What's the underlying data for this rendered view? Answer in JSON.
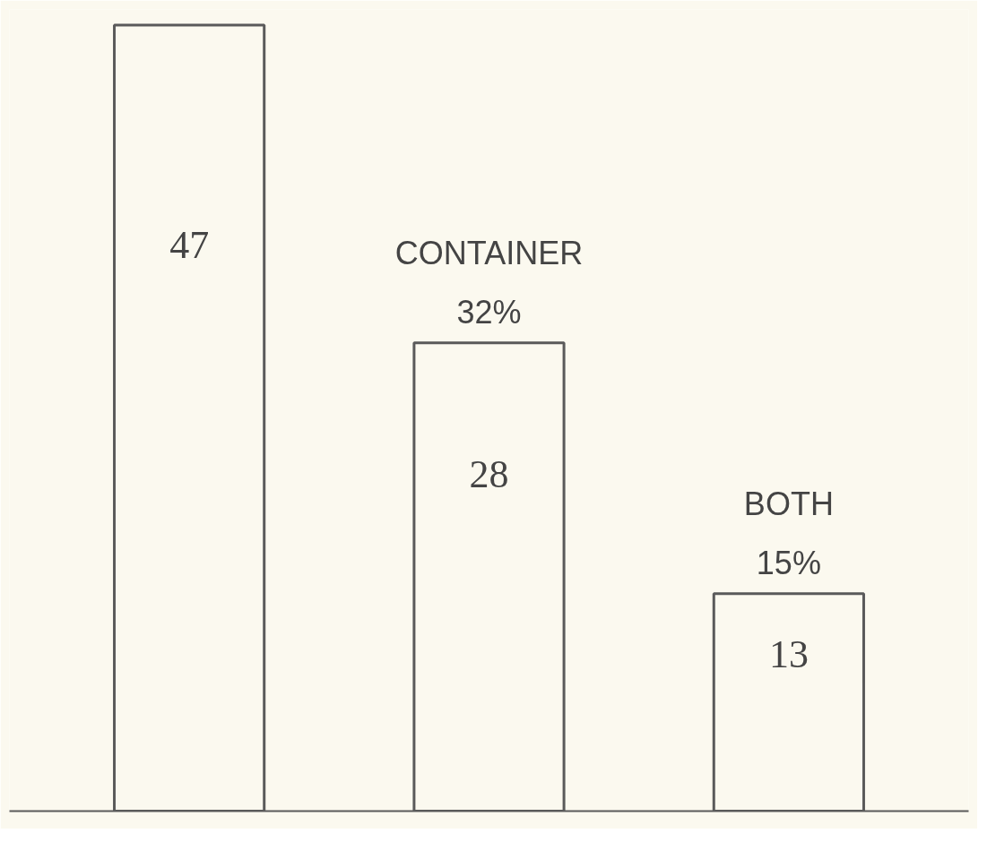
{
  "chart_data": {
    "type": "bar",
    "categories": [
      null,
      "CONTAINER",
      "BOTH"
    ],
    "values": [
      47,
      28,
      13
    ],
    "color": "#fbf9ef",
    "data_labels": true,
    "annotations": [
      {
        "text": "32%",
        "x": "CONTAINER",
        "y": 28
      },
      {
        "text": "15%",
        "x": "BOTH",
        "y": 13
      }
    ],
    "grid": false
  }
}
